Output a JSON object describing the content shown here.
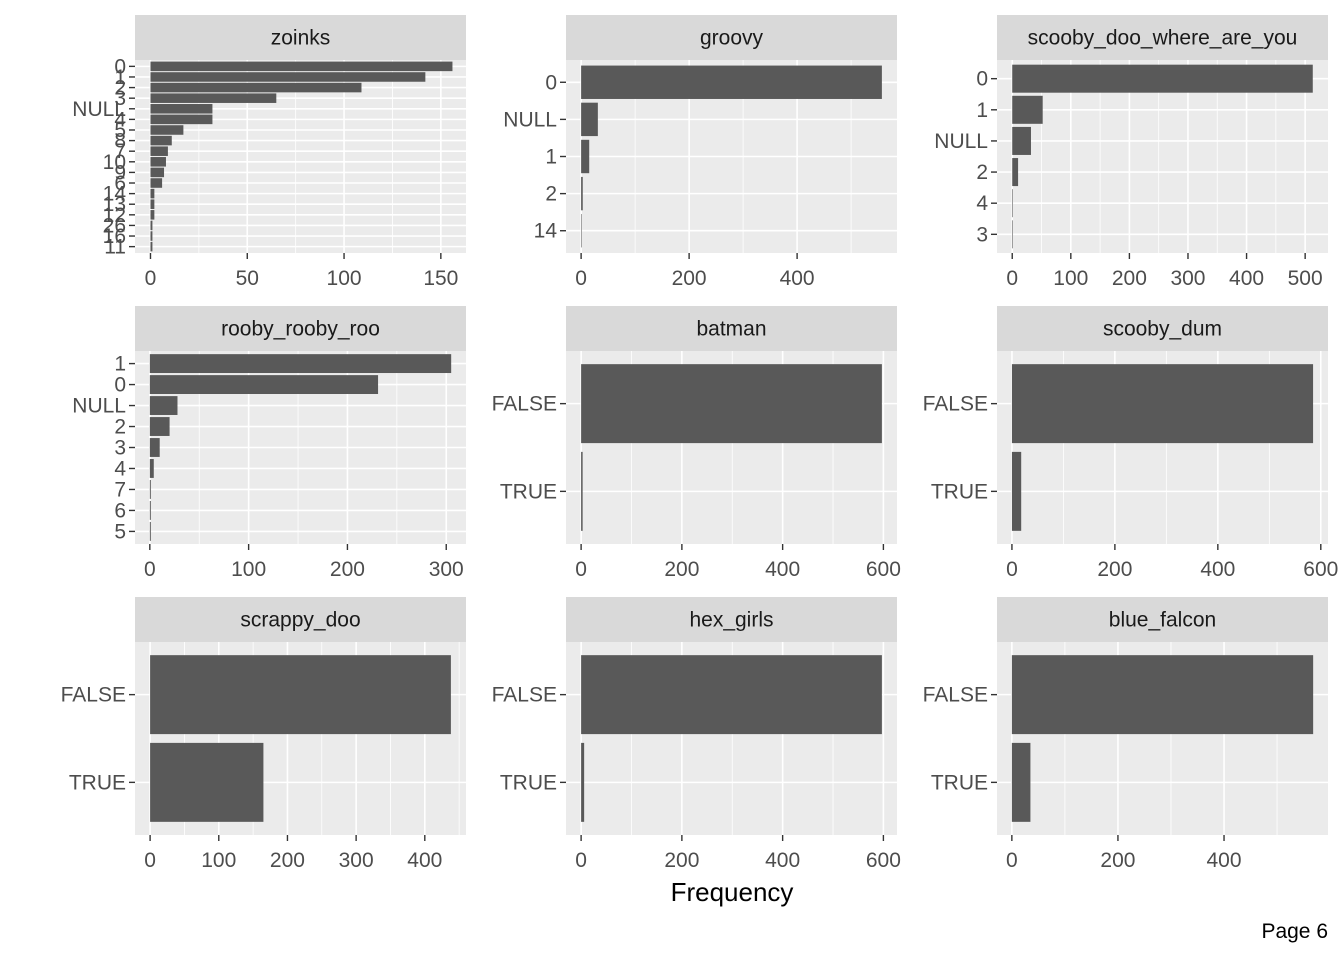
{
  "page_label": "Page 6",
  "chart_data": {
    "type": "bar",
    "orientation": "horizontal",
    "layout": "facet-grid 3x3",
    "xlabel": "Frequency",
    "bar_color": "#595959",
    "panel_background": "#ebebeb",
    "strip_background": "#d9d9d9",
    "grid": true,
    "facets": [
      {
        "title": "zoinks",
        "categories": [
          "0",
          "1",
          "2",
          "3",
          "NULL",
          "4",
          "5",
          "8",
          "7",
          "10",
          "9",
          "6",
          "14",
          "13",
          "12",
          "26",
          "16",
          "11"
        ],
        "values": [
          156,
          142,
          109,
          65,
          32,
          32,
          17,
          11,
          9,
          8,
          7,
          6,
          2,
          2,
          2,
          1,
          1,
          1
        ],
        "xlim": [
          -8,
          163
        ],
        "xticks": [
          0,
          50,
          100,
          150
        ]
      },
      {
        "title": "groovy",
        "categories": [
          "0",
          "NULL",
          "1",
          "2",
          "14"
        ],
        "values": [
          557,
          31,
          15,
          3,
          1
        ],
        "xlim": [
          -28,
          585
        ],
        "xticks": [
          0,
          200,
          400
        ]
      },
      {
        "title": "scooby_doo_where_are_you",
        "categories": [
          "0",
          "1",
          "NULL",
          "2",
          "4",
          "3"
        ],
        "values": [
          513,
          52,
          32,
          10,
          1,
          1
        ],
        "xlim": [
          -26,
          539
        ],
        "xticks": [
          0,
          100,
          200,
          300,
          400,
          500
        ]
      },
      {
        "title": "rooby_rooby_roo",
        "categories": [
          "1",
          "0",
          "NULL",
          "2",
          "3",
          "4",
          "7",
          "6",
          "5"
        ],
        "values": [
          305,
          231,
          28,
          20,
          10,
          4,
          1,
          1,
          1
        ],
        "xlim": [
          -15,
          320
        ],
        "xticks": [
          0,
          100,
          200,
          300
        ]
      },
      {
        "title": "batman",
        "categories": [
          "FALSE",
          "TRUE"
        ],
        "values": [
          597,
          3
        ],
        "xlim": [
          -30,
          627
        ],
        "xticks": [
          0,
          200,
          400,
          600
        ]
      },
      {
        "title": "scooby_dum",
        "categories": [
          "FALSE",
          "TRUE"
        ],
        "values": [
          585,
          18
        ],
        "xlim": [
          -29,
          614
        ],
        "xticks": [
          0,
          200,
          400,
          600
        ]
      },
      {
        "title": "scrappy_doo",
        "categories": [
          "FALSE",
          "TRUE"
        ],
        "values": [
          438,
          165
        ],
        "xlim": [
          -22,
          460
        ],
        "xticks": [
          0,
          100,
          200,
          300,
          400
        ]
      },
      {
        "title": "hex_girls",
        "categories": [
          "FALSE",
          "TRUE"
        ],
        "values": [
          597,
          6
        ],
        "xlim": [
          -30,
          627
        ],
        "xticks": [
          0,
          200,
          400,
          600
        ]
      },
      {
        "title": "blue_falcon",
        "categories": [
          "FALSE",
          "TRUE"
        ],
        "values": [
          568,
          35
        ],
        "xlim": [
          -28,
          596
        ],
        "xticks": [
          0,
          200,
          400
        ]
      }
    ]
  }
}
